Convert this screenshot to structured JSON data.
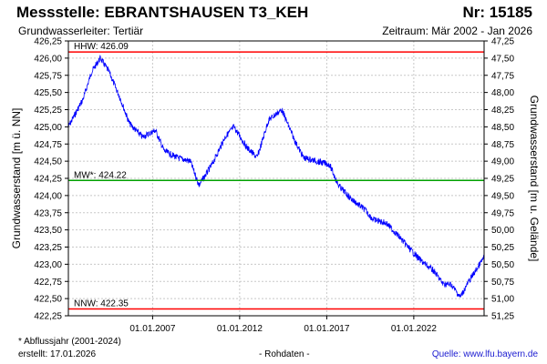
{
  "header": {
    "station": "Messstelle: EBRANTSHAUSEN T3_KEH",
    "number": "Nr: 15185",
    "aquifer": "Grundwasserleiter: Tertiär",
    "period": "Zeitraum: Mär 2002 - Jan 2026"
  },
  "footer": {
    "note": "* Abflussjahr (2001-2024)",
    "created": "erstellt:  17.01.2026",
    "data_type": "- Rohdaten -",
    "source": "Quelle: www.lfu.bayern.de"
  },
  "colors": {
    "series": "#0000ff",
    "hhw": "#ff0000",
    "mw": "#00a000",
    "nnw": "#ff0000",
    "grid": "#c8c8c8"
  },
  "chart_data": {
    "type": "line",
    "ylabel": "Grundwasserstand [m ü. NN]",
    "y2label": "Grundwasserstand [m u. Gelände]",
    "xlim": [
      "2002-03-01",
      "2026-01-15"
    ],
    "ylim": [
      422.25,
      426.25
    ],
    "y2lim": [
      51.25,
      47.25
    ],
    "grid": true,
    "x_ticks": [
      "01.01.2007",
      "01.01.2012",
      "01.01.2017",
      "01.01.2022"
    ],
    "y_ticks": [
      "426,25",
      "426,00",
      "425,75",
      "425,50",
      "425,25",
      "425,00",
      "424,75",
      "424,50",
      "424,25",
      "424,00",
      "423,75",
      "423,50",
      "423,25",
      "423,00",
      "422,75",
      "422,50",
      "422,25"
    ],
    "y2_ticks": [
      "47,25",
      "47,50",
      "47,75",
      "48,00",
      "48,25",
      "48,50",
      "48,75",
      "49,00",
      "49,25",
      "49,50",
      "49,75",
      "50,00",
      "50,25",
      "50,50",
      "50,75",
      "51,00",
      "51,25"
    ],
    "reference_lines": [
      {
        "label": "HHW: 426.09",
        "value": 426.09
      },
      {
        "label": "MW*: 424.22",
        "value": 424.22
      },
      {
        "label": "NNW: 422.35",
        "value": 422.35
      }
    ],
    "series": [
      {
        "x": [
          "2002-03-01",
          "2003-01-01",
          "2003-07-01",
          "2004-01-01",
          "2004-07-01",
          "2005-03-01",
          "2005-09-01",
          "2006-06-01",
          "2007-03-01",
          "2007-09-01",
          "2008-06-01",
          "2009-03-01",
          "2009-09-01",
          "2010-06-01",
          "2011-03-01",
          "2011-09-01",
          "2012-06-01",
          "2013-01-01",
          "2013-09-01",
          "2014-06-01",
          "2015-03-01",
          "2015-09-01",
          "2016-06-01",
          "2017-03-01",
          "2017-09-01",
          "2018-06-01",
          "2019-03-01",
          "2019-09-01",
          "2020-06-01",
          "2021-03-01",
          "2021-09-01",
          "2022-06-01",
          "2023-03-01",
          "2023-09-01",
          "2024-03-01",
          "2024-09-01",
          "2025-03-01",
          "2025-09-01",
          "2026-01-15"
        ],
        "y": [
          425.0,
          425.4,
          425.8,
          426.0,
          425.8,
          425.4,
          425.05,
          424.85,
          424.95,
          424.65,
          424.55,
          424.5,
          424.15,
          424.45,
          424.85,
          425.0,
          424.7,
          424.55,
          425.1,
          425.25,
          424.8,
          424.55,
          424.5,
          424.45,
          424.15,
          423.95,
          423.8,
          423.65,
          423.6,
          423.4,
          423.25,
          423.05,
          422.9,
          422.72,
          422.7,
          422.52,
          422.75,
          422.95,
          423.1
        ]
      }
    ]
  }
}
